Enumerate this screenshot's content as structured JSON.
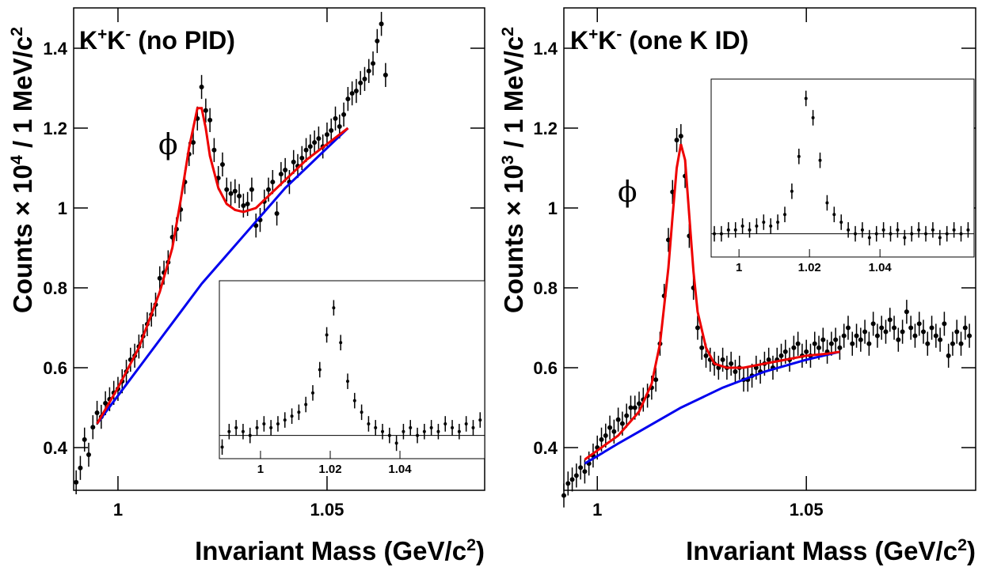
{
  "chart_data": [
    {
      "type": "scatter",
      "title": [
        "K",
        "+",
        "K",
        "-",
        " (no PID)"
      ],
      "x_label": [
        "Invariant Mass (GeV/c",
        "2",
        ")"
      ],
      "y_label": [
        "Counts × 10",
        "4",
        " / 1 MeV/c",
        "2"
      ],
      "annotation": "ϕ",
      "xlim": [
        0.9894,
        1.0877
      ],
      "ylim": [
        0.293,
        1.501
      ],
      "xticks": [
        1,
        1.05
      ],
      "yticks": [
        0.4,
        0.6,
        0.8,
        1,
        1.2,
        1.4
      ],
      "error": 0.03,
      "x": [
        0.99,
        0.991,
        0.992,
        0.993,
        0.994,
        0.995,
        0.996,
        0.997,
        0.998,
        0.999,
        1.0,
        1.001,
        1.002,
        1.003,
        1.004,
        1.005,
        1.006,
        1.007,
        1.008,
        1.009,
        1.01,
        1.011,
        1.012,
        1.013,
        1.014,
        1.015,
        1.016,
        1.017,
        1.018,
        1.019,
        1.02,
        1.021,
        1.022,
        1.023,
        1.024,
        1.025,
        1.026,
        1.027,
        1.028,
        1.029,
        1.03,
        1.031,
        1.032,
        1.033,
        1.034,
        1.035,
        1.036,
        1.037,
        1.038,
        1.039,
        1.04,
        1.041,
        1.042,
        1.043,
        1.044,
        1.045,
        1.046,
        1.047,
        1.048,
        1.049,
        1.05,
        1.051,
        1.052,
        1.053,
        1.054,
        1.055,
        1.056,
        1.057,
        1.058,
        1.059,
        1.06,
        1.061,
        1.062,
        1.063,
        1.064
      ],
      "values": [
        0.313,
        0.349,
        0.42,
        0.382,
        0.451,
        0.487,
        0.477,
        0.511,
        0.521,
        0.537,
        0.547,
        0.566,
        0.59,
        0.62,
        0.63,
        0.653,
        0.679,
        0.709,
        0.733,
        0.758,
        0.824,
        0.838,
        0.864,
        0.927,
        0.947,
        0.996,
        1.065,
        1.135,
        1.164,
        1.224,
        1.303,
        1.244,
        1.22,
        1.145,
        1.075,
        1.109,
        1.046,
        1.036,
        1.042,
        1.03,
        1.006,
        1.01,
        1.046,
        0.956,
        0.97,
        1.016,
        1.046,
        1.065,
        0.986,
        1.085,
        1.095,
        1.065,
        1.115,
        1.105,
        1.125,
        1.145,
        1.154,
        1.164,
        1.174,
        1.154,
        1.184,
        1.194,
        1.224,
        1.204,
        1.234,
        1.273,
        1.287,
        1.293,
        1.313,
        1.323,
        1.343,
        1.362,
        1.418,
        1.461,
        1.333
      ],
      "color": "#000000",
      "fits": [
        {
          "color": "#0000ee",
          "x": [
            0.995,
            1.0,
            1.005,
            1.01,
            1.015,
            1.02,
            1.025,
            1.03,
            1.035,
            1.04,
            1.045,
            1.05,
            1.055
          ],
          "values": [
            0.46,
            0.53,
            0.6,
            0.67,
            0.74,
            0.81,
            0.87,
            0.93,
            0.99,
            1.05,
            1.1,
            1.15,
            1.2
          ]
        },
        {
          "color": "#ee0000",
          "x": [
            0.995,
            1.0,
            1.005,
            1.01,
            1.013,
            1.015,
            1.017,
            1.019,
            1.02,
            1.021,
            1.022,
            1.024,
            1.026,
            1.028,
            1.03,
            1.033,
            1.036,
            1.04,
            1.045,
            1.05,
            1.055
          ],
          "values": [
            0.46,
            0.55,
            0.65,
            0.79,
            0.9,
            1.02,
            1.15,
            1.25,
            1.25,
            1.2,
            1.13,
            1.05,
            1.01,
            0.995,
            0.99,
            1.0,
            1.03,
            1.07,
            1.12,
            1.16,
            1.2
          ]
        }
      ],
      "inset": {
        "xlim": [
          0.9882,
          1.0643
        ],
        "ylim": [
          -0.06,
          0.4
        ],
        "xticks": [
          1,
          1.02,
          1.04
        ],
        "baseline": 0,
        "error": 0.02,
        "x": [
          0.989,
          0.991,
          0.993,
          0.995,
          0.997,
          0.999,
          1.001,
          1.003,
          1.005,
          1.007,
          1.009,
          1.011,
          1.013,
          1.015,
          1.017,
          1.019,
          1.021,
          1.023,
          1.025,
          1.027,
          1.029,
          1.031,
          1.033,
          1.035,
          1.037,
          1.039,
          1.041,
          1.043,
          1.045,
          1.047,
          1.049,
          1.051,
          1.053,
          1.055,
          1.057,
          1.059,
          1.061,
          1.063
        ],
        "values": [
          -0.03,
          0.01,
          0.02,
          0.01,
          0.0,
          0.02,
          0.03,
          0.02,
          0.03,
          0.04,
          0.05,
          0.06,
          0.08,
          0.11,
          0.17,
          0.26,
          0.33,
          0.24,
          0.14,
          0.09,
          0.06,
          0.03,
          0.02,
          0.01,
          0.0,
          -0.02,
          0.01,
          0.02,
          0.0,
          0.01,
          0.02,
          0.01,
          0.03,
          0.02,
          0.01,
          0.03,
          0.02,
          0.04
        ]
      }
    },
    {
      "type": "scatter",
      "title": [
        "K",
        "+",
        "K",
        "-",
        " (one K ID)"
      ],
      "x_label": [
        "Invariant Mass (GeV/c",
        "2",
        ")"
      ],
      "y_label": [
        "Counts × 10",
        "3",
        " / 1 MeV/c",
        "2"
      ],
      "annotation": "ϕ",
      "xlim": [
        0.992,
        1.0905
      ],
      "ylim": [
        0.293,
        1.501
      ],
      "xticks": [
        1,
        1.05
      ],
      "yticks": [
        0.4,
        0.6,
        0.8,
        1,
        1.2,
        1.4
      ],
      "error": 0.03,
      "x": [
        0.992,
        0.993,
        0.994,
        0.995,
        0.996,
        0.997,
        0.998,
        0.999,
        1.0,
        1.001,
        1.002,
        1.003,
        1.004,
        1.005,
        1.006,
        1.007,
        1.008,
        1.009,
        1.01,
        1.011,
        1.012,
        1.013,
        1.014,
        1.015,
        1.016,
        1.017,
        1.018,
        1.019,
        1.02,
        1.021,
        1.022,
        1.023,
        1.024,
        1.025,
        1.026,
        1.027,
        1.028,
        1.029,
        1.03,
        1.031,
        1.032,
        1.033,
        1.034,
        1.035,
        1.036,
        1.037,
        1.038,
        1.039,
        1.04,
        1.041,
        1.042,
        1.043,
        1.044,
        1.045,
        1.046,
        1.047,
        1.048,
        1.049,
        1.05,
        1.051,
        1.052,
        1.053,
        1.054,
        1.055,
        1.056,
        1.057,
        1.058,
        1.059,
        1.06,
        1.061,
        1.062,
        1.063,
        1.064,
        1.065,
        1.066,
        1.067,
        1.068,
        1.069,
        1.07,
        1.071,
        1.072,
        1.073,
        1.074,
        1.075,
        1.076,
        1.077,
        1.078,
        1.079,
        1.08,
        1.081,
        1.082,
        1.083,
        1.084,
        1.085,
        1.086,
        1.087,
        1.088,
        1.089
      ],
      "values": [
        0.28,
        0.31,
        0.32,
        0.33,
        0.35,
        0.34,
        0.36,
        0.38,
        0.4,
        0.42,
        0.43,
        0.45,
        0.44,
        0.47,
        0.46,
        0.48,
        0.5,
        0.5,
        0.51,
        0.52,
        0.53,
        0.55,
        0.57,
        0.66,
        0.78,
        0.92,
        1.04,
        1.17,
        1.18,
        1.08,
        0.93,
        0.8,
        0.7,
        0.65,
        0.63,
        0.62,
        0.61,
        0.6,
        0.62,
        0.6,
        0.61,
        0.59,
        0.6,
        0.57,
        0.57,
        0.58,
        0.6,
        0.59,
        0.61,
        0.62,
        0.6,
        0.62,
        0.63,
        0.64,
        0.62,
        0.65,
        0.66,
        0.63,
        0.64,
        0.63,
        0.66,
        0.65,
        0.67,
        0.64,
        0.66,
        0.67,
        0.65,
        0.68,
        0.7,
        0.66,
        0.68,
        0.67,
        0.69,
        0.66,
        0.71,
        0.68,
        0.7,
        0.69,
        0.72,
        0.7,
        0.67,
        0.69,
        0.74,
        0.7,
        0.68,
        0.71,
        0.69,
        0.66,
        0.7,
        0.68,
        0.67,
        0.71,
        0.63,
        0.66,
        0.69,
        0.66,
        0.7,
        0.68
      ],
      "color": "#000000",
      "fits": [
        {
          "color": "#0000ee",
          "x": [
            0.997,
            1.005,
            1.01,
            1.02,
            1.03,
            1.04,
            1.05,
            1.058
          ],
          "values": [
            0.36,
            0.41,
            0.44,
            0.5,
            0.55,
            0.59,
            0.62,
            0.64
          ]
        },
        {
          "color": "#ee0000",
          "x": [
            0.997,
            1.005,
            1.01,
            1.013,
            1.015,
            1.017,
            1.018,
            1.019,
            1.02,
            1.021,
            1.022,
            1.023,
            1.024,
            1.026,
            1.028,
            1.031,
            1.035,
            1.04,
            1.045,
            1.05,
            1.055,
            1.058
          ],
          "values": [
            0.37,
            0.43,
            0.49,
            0.56,
            0.66,
            0.85,
            0.98,
            1.1,
            1.16,
            1.12,
            0.98,
            0.84,
            0.74,
            0.65,
            0.61,
            0.6,
            0.6,
            0.61,
            0.62,
            0.63,
            0.635,
            0.64
          ]
        }
      ],
      "inset": {
        "xlim": [
          0.9921,
          1.0667
        ],
        "ylim": [
          -0.06,
          0.4
        ],
        "xticks": [
          1,
          1.02,
          1.04
        ],
        "baseline": 0,
        "error": 0.02,
        "x": [
          0.993,
          0.995,
          0.997,
          0.999,
          1.001,
          1.003,
          1.005,
          1.007,
          1.009,
          1.011,
          1.013,
          1.015,
          1.017,
          1.019,
          1.021,
          1.023,
          1.025,
          1.027,
          1.029,
          1.031,
          1.033,
          1.035,
          1.037,
          1.039,
          1.041,
          1.043,
          1.045,
          1.047,
          1.049,
          1.051,
          1.053,
          1.055,
          1.057,
          1.059,
          1.061,
          1.063,
          1.065
        ],
        "values": [
          0.0,
          0.0,
          0.01,
          0.01,
          0.02,
          0.01,
          0.02,
          0.03,
          0.02,
          0.03,
          0.05,
          0.11,
          0.2,
          0.35,
          0.3,
          0.19,
          0.08,
          0.05,
          0.03,
          0.01,
          0.0,
          0.01,
          -0.01,
          0.0,
          0.01,
          0.0,
          0.01,
          -0.01,
          0.0,
          0.01,
          0.0,
          0.01,
          -0.01,
          0.0,
          0.01,
          0.0,
          0.01
        ]
      }
    }
  ]
}
